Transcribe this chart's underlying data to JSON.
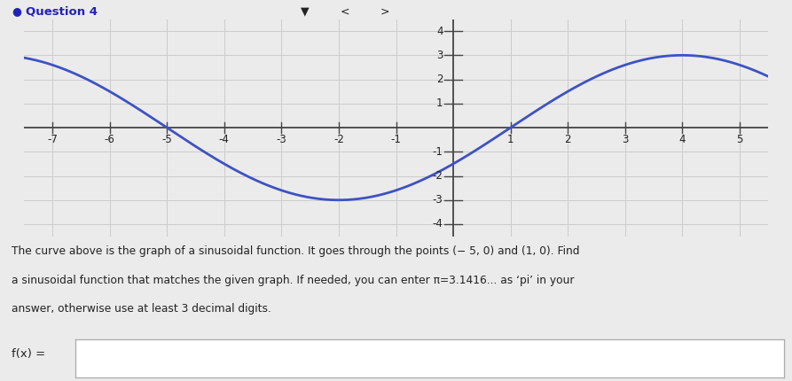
{
  "amplitude": 3,
  "period": 12,
  "zero_phase": -5,
  "sign": -1,
  "x_min": -7.5,
  "x_max": 5.5,
  "y_min": -4.5,
  "y_max": 4.5,
  "x_ticks": [
    -7,
    -6,
    -5,
    -4,
    -3,
    -2,
    -1,
    1,
    2,
    3,
    4,
    5
  ],
  "y_ticks": [
    -4,
    -3,
    -2,
    -1,
    1,
    2,
    3,
    4
  ],
  "curve_color": "#3d52c5",
  "grid_color": "#cccccc",
  "axis_color": "#444444",
  "background_color": "#ebebeb",
  "text_color": "#222222",
  "question_label": "Question 4",
  "bullet_color": "#2222bb",
  "description_line1": "The curve above is the graph of a sinusoidal function. It goes through the points (− 5, 0) and (1, 0). Find",
  "description_line2": "a sinusoidal function that matches the given graph. If needed, you can enter π=3.1416... as ‘pi’ in your",
  "description_line3": "answer, otherwise use at least 3 decimal digits.",
  "answer_label": "f(x) =",
  "figwidth": 8.93,
  "figheight": 4.3
}
